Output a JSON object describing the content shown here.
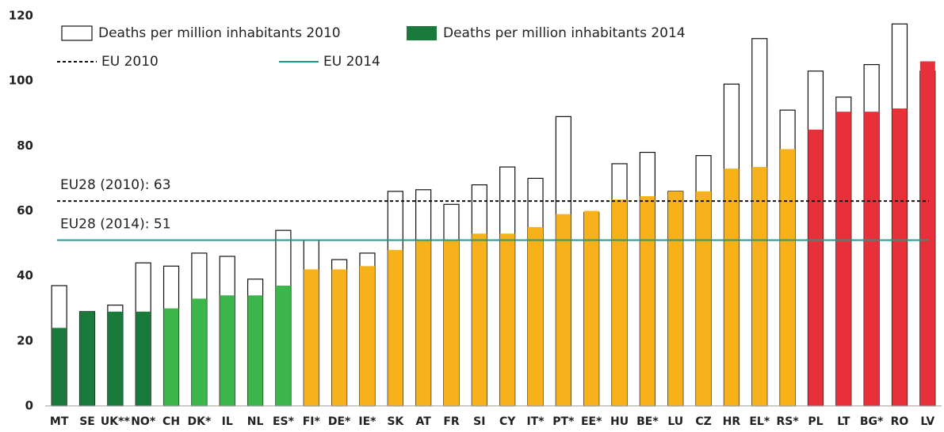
{
  "chart_data": {
    "type": "bar",
    "categories": [
      "MT",
      "SE",
      "UK**",
      "NO*",
      "CH",
      "DK*",
      "IL",
      "NL",
      "ES*",
      "FI*",
      "DE*",
      "IE*",
      "SK",
      "AT",
      "FR",
      "SI",
      "CY",
      "IT*",
      "PT*",
      "EE*",
      "HU",
      "BE*",
      "LU",
      "CZ",
      "HR",
      "EL*",
      "RS*",
      "PL",
      "LT",
      "BG*",
      "RO",
      "LV"
    ],
    "series": [
      {
        "name": "Deaths per million inhabitants 2010",
        "color": "#ffffff",
        "values": [
          37,
          29,
          31,
          44,
          43,
          47,
          46,
          39,
          54,
          51,
          45,
          47,
          66,
          66.5,
          62,
          68,
          73.5,
          70,
          89,
          59.5,
          74.5,
          78,
          66,
          77,
          99,
          113,
          91,
          103,
          95,
          105,
          117.5,
          103
        ]
      },
      {
        "name": "Deaths per million inhabitants 2014",
        "color": "#1a7a3c",
        "colors": [
          "#1a7a3c",
          "#1a7a3c",
          "#1a7a3c",
          "#1a7a3c",
          "#3cb54a",
          "#3cb54a",
          "#3cb54a",
          "#3cb54a",
          "#3cb54a",
          "#f7b21b",
          "#f7b21b",
          "#f7b21b",
          "#f7b21b",
          "#f7b21b",
          "#f7b21b",
          "#f7b21b",
          "#f7b21b",
          "#f7b21b",
          "#f7b21b",
          "#f7b21b",
          "#f7b21b",
          "#f7b21b",
          "#f7b21b",
          "#f7b21b",
          "#f7b21b",
          "#f7b21b",
          "#f7b21b",
          "#e8303a",
          "#e8303a",
          "#e8303a",
          "#e8303a",
          "#e8303a"
        ],
        "values": [
          24,
          29,
          29,
          29,
          30,
          33,
          34,
          34,
          37,
          42,
          42,
          43,
          48,
          51,
          51,
          53,
          53,
          55,
          59,
          60,
          63.5,
          64.5,
          66,
          66,
          73,
          73.5,
          79,
          85,
          90.5,
          90.5,
          91.5,
          106
        ]
      }
    ],
    "reference_lines": [
      {
        "name": "EU 2010",
        "value": 63,
        "label": "EU28 (2010): 63",
        "color": "#111111",
        "dashed": true
      },
      {
        "name": "EU 2014",
        "value": 51,
        "label": "EU28 (2014): 51",
        "color": "#1a9a8a",
        "dashed": false
      }
    ],
    "ylim": [
      0,
      120
    ],
    "yticks": [
      0,
      20,
      40,
      60,
      80,
      100,
      120
    ],
    "grid": false
  }
}
